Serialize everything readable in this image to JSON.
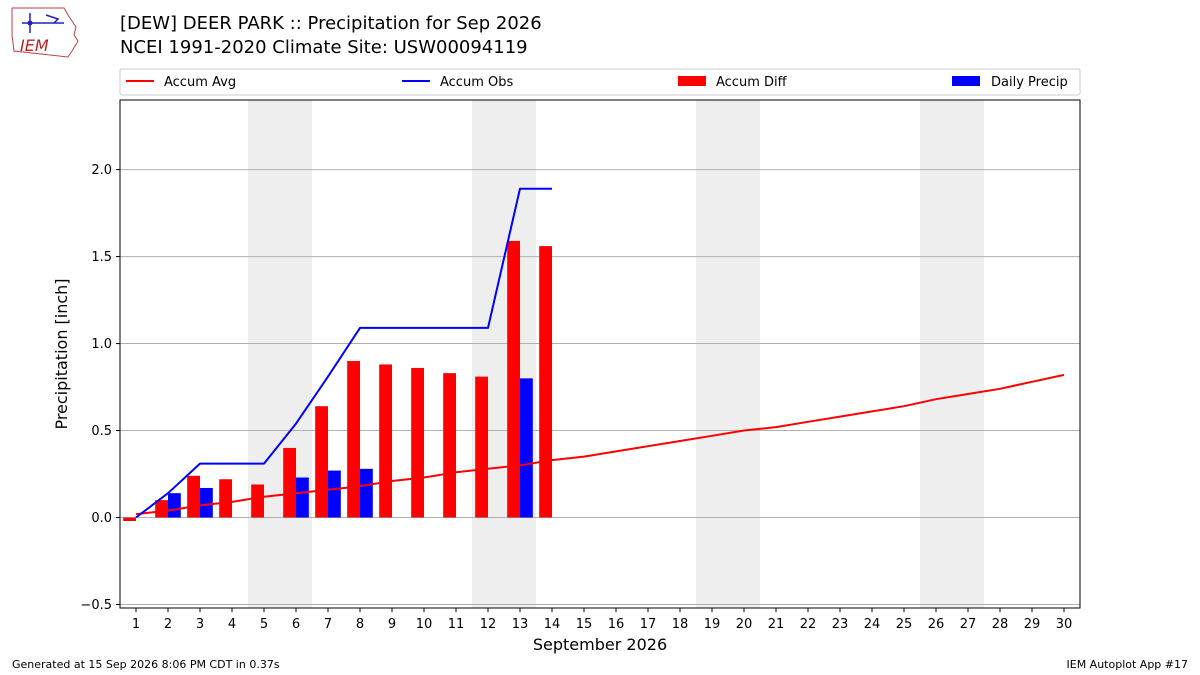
{
  "title_line1": "[DEW] DEER PARK :: Precipitation for Sep 2026",
  "title_line2": "NCEI 1991-2020 Climate Site: USW00094119",
  "logo_text": "IEM",
  "footer_left": "Generated at 15 Sep 2026 8:06 PM CDT in 0.37s",
  "footer_right": "IEM Autoplot App #17",
  "colors": {
    "accum_avg": "#ff0000",
    "accum_obs": "#0000ff",
    "accum_diff": "#ff0000",
    "daily_precip": "#0000ff",
    "weekend_band": "#eeeeee",
    "grid": "#b0b0b0"
  },
  "chart_data": {
    "type": "bar",
    "xlabel": "September 2026",
    "ylabel": "Precipitation [inch]",
    "xlim": [
      0.5,
      30.5
    ],
    "ylim": [
      -0.52,
      2.4
    ],
    "yticks": [
      -0.5,
      0.0,
      0.5,
      1.0,
      1.5,
      2.0
    ],
    "ytick_labels": [
      "−0.5",
      "0.0",
      "0.5",
      "1.0",
      "1.5",
      "2.0"
    ],
    "days": [
      1,
      2,
      3,
      4,
      5,
      6,
      7,
      8,
      9,
      10,
      11,
      12,
      13,
      14,
      15,
      16,
      17,
      18,
      19,
      20,
      21,
      22,
      23,
      24,
      25,
      26,
      27,
      28,
      29,
      30
    ],
    "grid": "horizontal",
    "legend_placement": "top, above plot",
    "weekend_bands": [
      [
        4.5,
        6.5
      ],
      [
        11.5,
        13.5
      ],
      [
        18.5,
        20.5
      ],
      [
        25.5,
        27.5
      ]
    ],
    "legend": [
      {
        "label": "Accum Avg",
        "kind": "line",
        "color_key": "accum_avg"
      },
      {
        "label": "Accum Obs",
        "kind": "line",
        "color_key": "accum_obs"
      },
      {
        "label": "Accum Diff",
        "kind": "bar",
        "color_key": "accum_diff"
      },
      {
        "label": "Daily Precip",
        "kind": "bar",
        "color_key": "daily_precip"
      }
    ],
    "accum_avg": {
      "x": [
        1,
        2,
        3,
        4,
        5,
        6,
        7,
        8,
        9,
        10,
        11,
        12,
        13,
        14,
        15,
        16,
        17,
        18,
        19,
        20,
        21,
        22,
        23,
        24,
        25,
        26,
        27,
        28,
        29,
        30
      ],
      "y": [
        0.02,
        0.04,
        0.07,
        0.09,
        0.12,
        0.14,
        0.16,
        0.18,
        0.21,
        0.23,
        0.26,
        0.28,
        0.3,
        0.33,
        0.35,
        0.38,
        0.41,
        0.44,
        0.47,
        0.5,
        0.52,
        0.55,
        0.58,
        0.61,
        0.64,
        0.68,
        0.71,
        0.74,
        0.78,
        0.82
      ]
    },
    "accum_obs": {
      "x": [
        1,
        2,
        3,
        4,
        5,
        6,
        7,
        8,
        9,
        10,
        11,
        12,
        13,
        14
      ],
      "y": [
        0.0,
        0.14,
        0.31,
        0.31,
        0.31,
        0.54,
        0.81,
        1.09,
        1.09,
        1.09,
        1.09,
        1.09,
        1.89,
        1.89
      ]
    },
    "accum_diff": {
      "x": [
        1,
        2,
        3,
        4,
        5,
        6,
        7,
        8,
        9,
        10,
        11,
        12,
        13,
        14
      ],
      "values": [
        -0.02,
        0.1,
        0.24,
        0.22,
        0.19,
        0.4,
        0.64,
        0.9,
        0.88,
        0.86,
        0.83,
        0.81,
        1.59,
        1.56
      ]
    },
    "daily_precip": {
      "x": [
        1,
        2,
        3,
        4,
        5,
        6,
        7,
        8,
        9,
        10,
        11,
        12,
        13,
        14
      ],
      "values": [
        0.0,
        0.14,
        0.17,
        0.0,
        0.0,
        0.23,
        0.27,
        0.28,
        0.0,
        0.0,
        0.0,
        0.0,
        0.8,
        0.0
      ]
    }
  }
}
